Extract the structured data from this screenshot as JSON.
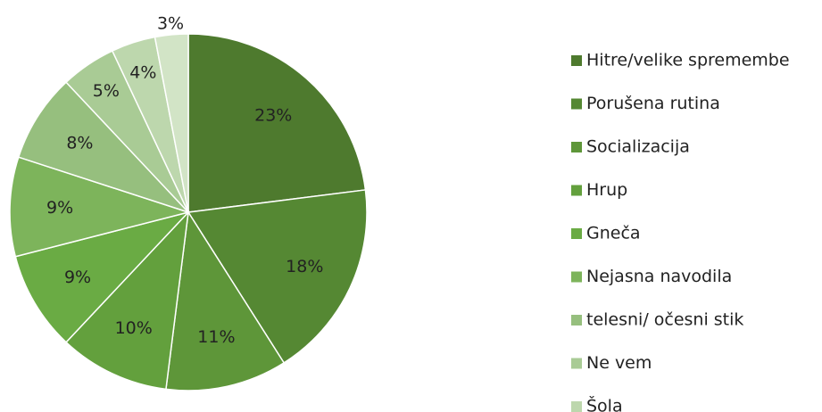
{
  "chart_data": {
    "type": "pie",
    "categories": [
      "Hitre/velike spremembe",
      "Porušena rutina",
      "Socializacija",
      "Hrup",
      "Gneča",
      "Nejasna navodila",
      "telesni/ očesni stik",
      "Ne vem",
      "Šola",
      null
    ],
    "values": [
      23,
      18,
      11,
      10,
      9,
      9,
      8,
      5,
      4,
      3
    ],
    "value_labels": [
      "23%",
      "18%",
      "11%",
      "10%",
      "9%",
      "9%",
      "8%",
      "5%",
      "4%",
      "3%"
    ],
    "colors": [
      "#4e7a2e",
      "#558833",
      "#5e9639",
      "#63a03d",
      "#6aab44",
      "#7db45b",
      "#96bf7e",
      "#a9cb95",
      "#bdd7ad",
      "#d2e4c6"
    ],
    "legend": "right"
  }
}
